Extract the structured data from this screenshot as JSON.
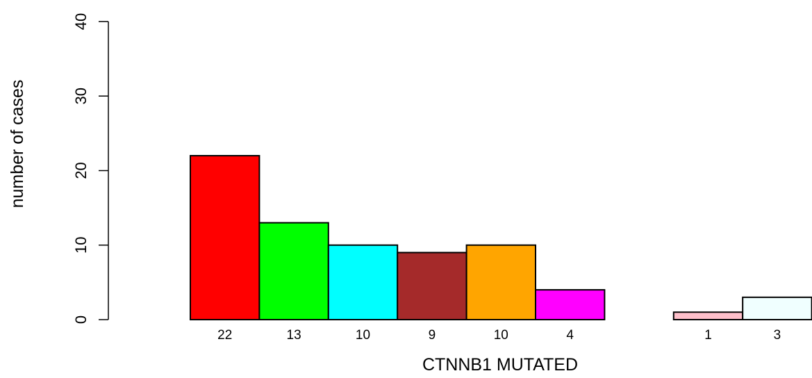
{
  "chart_data": {
    "type": "bar",
    "title": "",
    "xlabel": "CTNNB1 MUTATED",
    "ylabel": "number of cases",
    "ylim": [
      0,
      40
    ],
    "yticks": [
      0,
      10,
      20,
      30,
      40
    ],
    "grid": false,
    "categories": [
      "22",
      "13",
      "10",
      "9",
      "10",
      "4",
      "",
      "1",
      "3"
    ],
    "values": [
      22,
      13,
      10,
      9,
      10,
      4,
      0,
      1,
      3
    ],
    "colors": [
      "#ff0000",
      "#00ff00",
      "#00ffff",
      "#a52a2a",
      "#ffa500",
      "#ff00ff",
      "#ffffff",
      "#ffc0cb",
      "#f0ffff"
    ]
  }
}
